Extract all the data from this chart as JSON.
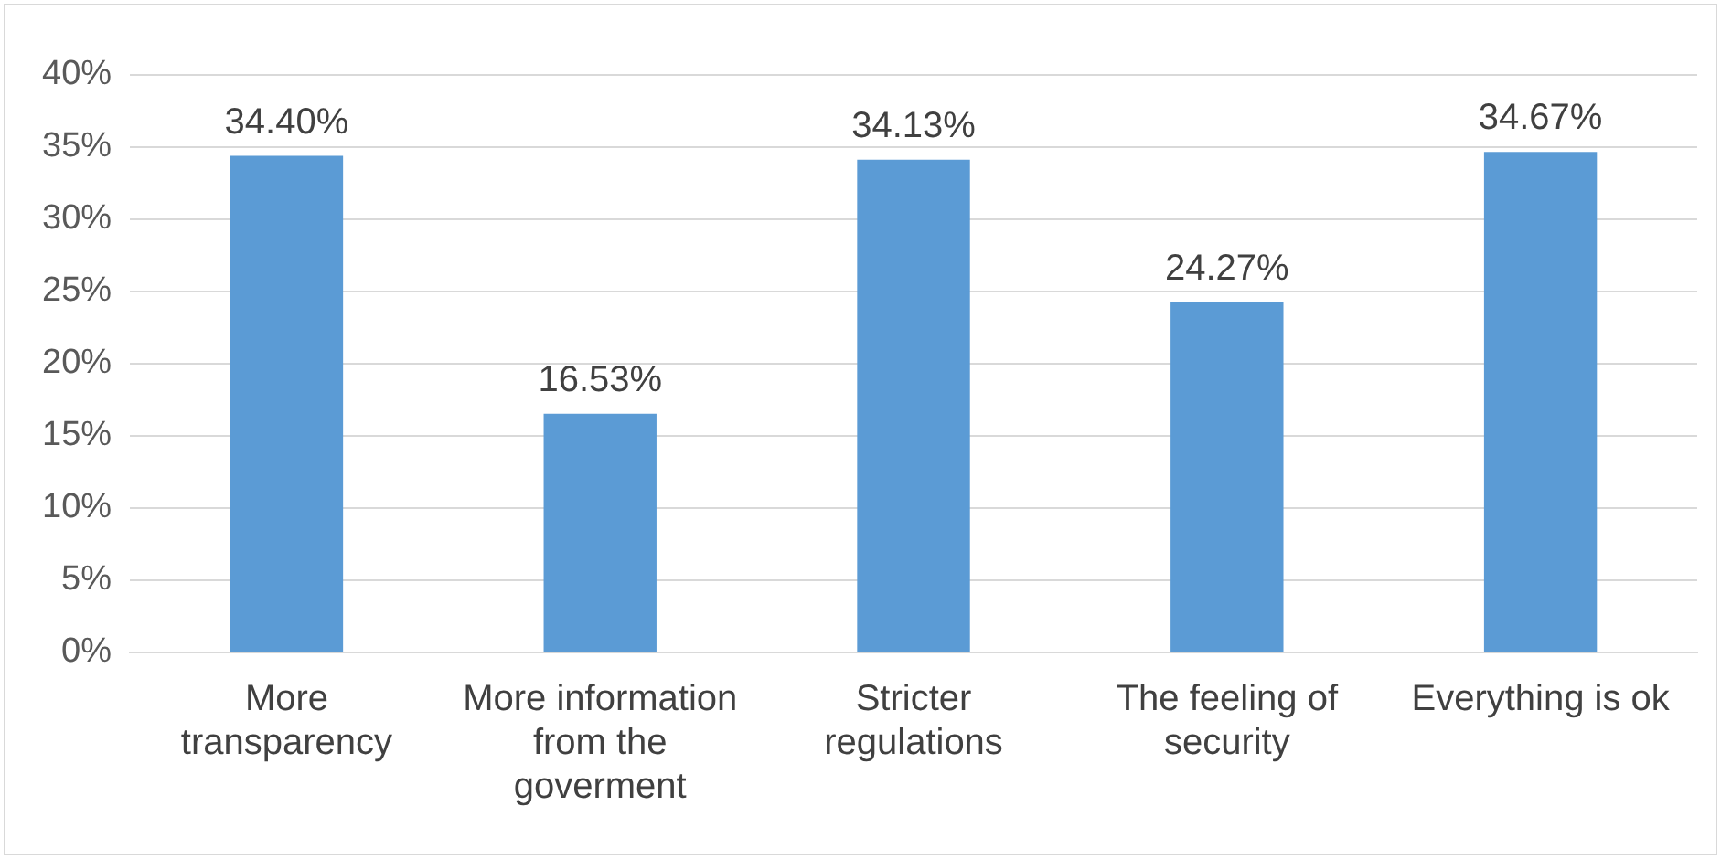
{
  "chart_data": {
    "type": "bar",
    "categories": [
      "More transparency",
      "More information from the goverment",
      "Stricter regulations",
      "The feeling of security",
      "Everything is ok"
    ],
    "values": [
      34.4,
      16.53,
      34.13,
      24.27,
      34.67
    ],
    "value_labels": [
      "34.40%",
      "16.53%",
      "34.13%",
      "24.27%",
      "34.67%"
    ],
    "color": "#5b9bd5",
    "ylim": [
      0,
      40
    ],
    "yticks": [
      {
        "value": 0,
        "label": "0%"
      },
      {
        "value": 5,
        "label": "5%"
      },
      {
        "value": 10,
        "label": "10%"
      },
      {
        "value": 15,
        "label": "15%"
      },
      {
        "value": 20,
        "label": "20%"
      },
      {
        "value": 25,
        "label": "25%"
      },
      {
        "value": 30,
        "label": "30%"
      },
      {
        "value": 35,
        "label": "35%"
      },
      {
        "value": 40,
        "label": "40%"
      }
    ],
    "grid": "y"
  }
}
